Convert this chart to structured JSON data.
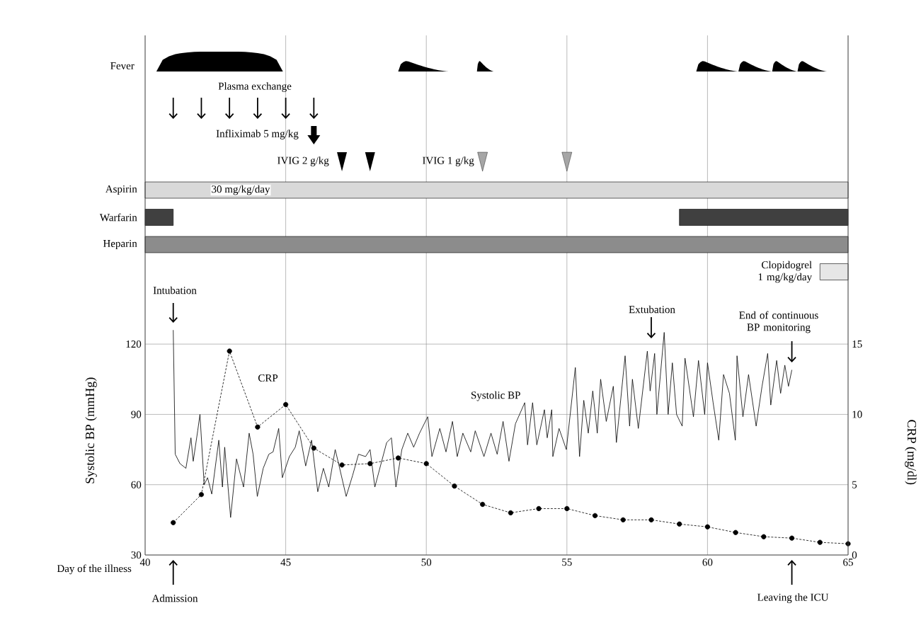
{
  "chart_data": [
    {
      "type": "bar",
      "orientation": "horizontal",
      "categories": [
        "Aspirin",
        "Warfarin",
        "Heparin",
        "Clopidogrel 1 mg/kg/day"
      ],
      "xlim": [
        40,
        65
      ],
      "xticks": [
        40,
        45,
        50,
        55,
        60,
        65
      ],
      "grid": "x",
      "tick_labels": false,
      "series": [
        {
          "values": [
            25,
            1,
            25,
            1
          ],
          "base": [
            40,
            40,
            40,
            64
          ],
          "colors": [
            "#d9d9d9",
            "#404040",
            "#8c8c8c",
            "#e6e6e6"
          ]
        },
        {
          "values": [
            null,
            6,
            null,
            null
          ],
          "base": [
            null,
            59,
            null,
            null
          ],
          "color": "#404040"
        }
      ],
      "annotations": [
        "Fever",
        "Plasma exchange",
        "Infliximab 5 mg/kg",
        "IVIG 2 g/kg",
        "IVIG 1 g/kg",
        "30 mg/kg/day"
      ]
    },
    {
      "type": "line",
      "xlabel": "Day of the illness",
      "ylabel": "Systolic BP (mmHg)",
      "y2label": "CRP (mg/dl)",
      "xlim": [
        40,
        65
      ],
      "xticks": [
        40,
        45,
        50,
        55,
        60,
        65
      ],
      "ylim": [
        30,
        145.4
      ],
      "yticks": [
        30,
        60,
        90,
        120
      ],
      "y2lim": [
        0,
        19.23
      ],
      "y2ticks": [
        0,
        5,
        10,
        15
      ],
      "grid": true,
      "annotations": [
        "Intubation",
        "Extubation",
        "End of continuous BP monitoring",
        "Admission",
        "Leaving the ICU"
      ],
      "series": [
        {
          "name": "Systolic BP",
          "color": "#000000",
          "marker": "none",
          "line_style": "solid",
          "x": [
            41.0,
            41.07,
            41.24,
            41.45,
            41.63,
            41.71,
            41.87,
            41.95,
            42.1,
            42.22,
            42.37,
            42.62,
            42.75,
            42.83,
            43.04,
            43.25,
            43.5,
            43.7,
            43.84,
            43.99,
            44.2,
            44.4,
            44.55,
            44.75,
            44.88,
            45.13,
            45.34,
            45.48,
            45.71,
            45.92,
            46.14,
            46.34,
            46.53,
            46.76,
            46.88,
            47.15,
            47.38,
            47.59,
            47.84,
            48.0,
            48.17,
            48.59,
            48.76,
            48.92,
            49.13,
            49.34,
            49.55,
            49.76,
            50.05,
            50.2,
            50.48,
            50.7,
            50.93,
            51.1,
            51.3,
            51.58,
            51.74,
            52.05,
            52.3,
            52.52,
            52.73,
            52.94,
            53.17,
            53.5,
            53.6,
            53.78,
            53.93,
            54.2,
            54.3,
            54.46,
            54.5,
            54.72,
            54.98,
            55.3,
            55.45,
            55.6,
            55.76,
            55.92,
            56.08,
            56.2,
            56.4,
            56.65,
            56.76,
            57.07,
            57.23,
            57.33,
            57.54,
            57.86,
            57.96,
            58.12,
            58.2,
            58.46,
            58.6,
            58.75,
            58.9,
            59.1,
            59.2,
            59.5,
            59.68,
            59.9,
            60.0,
            60.2,
            60.4,
            60.57,
            60.78,
            60.99,
            61.05,
            61.26,
            61.46,
            61.73,
            61.94,
            62.14,
            62.25,
            62.46,
            62.6,
            62.75,
            62.88,
            63.0
          ],
          "values": [
            126,
            73,
            69,
            67,
            80,
            70,
            83,
            90,
            60,
            63,
            56,
            79,
            59,
            76,
            46,
            71,
            59,
            82,
            73,
            55,
            67,
            73,
            74,
            84,
            63,
            72,
            76,
            83,
            68,
            79,
            57,
            67,
            59,
            75,
            69,
            55,
            64,
            73,
            72,
            75,
            59,
            78,
            80,
            59,
            75,
            82,
            76,
            82,
            89,
            72,
            84,
            74,
            87,
            72,
            82,
            74,
            83,
            72,
            82,
            73,
            87,
            70,
            86,
            95,
            77,
            95,
            77,
            92,
            80,
            92,
            72,
            84,
            75,
            110,
            72,
            96,
            82,
            100,
            82,
            105,
            87,
            102,
            78,
            115,
            85,
            105,
            84,
            117,
            100,
            116,
            90,
            125,
            90,
            112,
            90,
            85,
            114,
            89,
            113,
            90,
            112,
            95,
            79,
            107,
            99,
            79,
            115,
            89,
            107,
            85,
            102,
            116,
            94,
            113,
            99,
            111,
            102,
            109
          ]
        },
        {
          "name": "CRP",
          "color": "#000000",
          "marker": "circle",
          "line_style": "dashed",
          "axis": "y2",
          "x": [
            41,
            42,
            43,
            44,
            45,
            46,
            47,
            48,
            49,
            50,
            51,
            52,
            53,
            54,
            55,
            56,
            57,
            58,
            59,
            60,
            61,
            62,
            63,
            64,
            65
          ],
          "values": [
            2.3,
            4.3,
            14.5,
            9.1,
            10.7,
            7.6,
            6.4,
            6.5,
            6.9,
            6.5,
            4.9,
            3.6,
            3.0,
            3.3,
            3.3,
            2.8,
            2.5,
            2.5,
            2.2,
            2.0,
            1.6,
            1.3,
            1.2,
            0.9,
            0.8
          ]
        }
      ]
    }
  ]
}
